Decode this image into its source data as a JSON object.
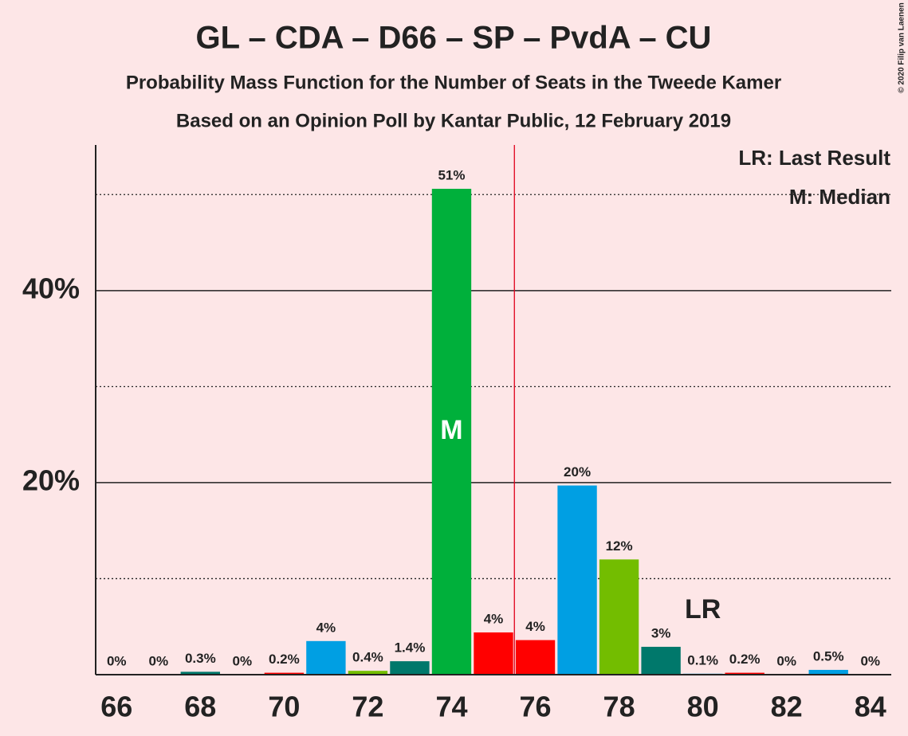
{
  "chart_data": {
    "type": "bar",
    "title": "GL – CDA – D66 – SP – PvdA – CU",
    "subtitle": "Probability Mass Function for the Number of Seats in the Tweede Kamer",
    "subtitle2": "Based on an Opinion Poll by Kantar Public, 12 February 2019",
    "copyright": "© 2020 Filip van Laenen",
    "categories": [
      66,
      67,
      68,
      69,
      70,
      71,
      72,
      73,
      74,
      75,
      76,
      77,
      78,
      79,
      80,
      81,
      82,
      83,
      84
    ],
    "values": [
      0,
      0,
      0.3,
      0,
      0.2,
      3.5,
      0.4,
      1.4,
      50.6,
      4.4,
      3.6,
      19.7,
      12,
      2.9,
      0.1,
      0.2,
      0,
      0.5,
      0
    ],
    "value_labels": [
      "0%",
      "0%",
      "0.3%",
      "0%",
      "0.2%",
      "4%",
      "0.4%",
      "1.4%",
      "51%",
      "4%",
      "4%",
      "20%",
      "12%",
      "3%",
      "0.1%",
      "0.2%",
      "0%",
      "0.5%",
      "0%"
    ],
    "colors": [
      "#00b03b",
      "#ff0000",
      "#00786b",
      "#73bd00",
      "#ff0000",
      "#009fe3",
      "#73bd00",
      "#00786b",
      "#00b03b",
      "#ff0000",
      "#ff0000",
      "#009fe3",
      "#73bd00",
      "#00786b",
      "#009fe3",
      "#ff0000",
      "#00b03b",
      "#009fe3",
      "#73bd00"
    ],
    "xticks": [
      66,
      68,
      70,
      72,
      74,
      76,
      78,
      80,
      82,
      84
    ],
    "xlim": [
      65.5,
      84.5
    ],
    "ylim": [
      0,
      55
    ],
    "yticks": [
      {
        "value": 20,
        "label": "20%"
      },
      {
        "value": 40,
        "label": "40%"
      }
    ],
    "minor_yticks": [
      10,
      30,
      50
    ],
    "majority_line": 75.5,
    "median": {
      "category": 74,
      "label": "M"
    },
    "last_result": {
      "category": 80,
      "label": "LR"
    },
    "legend": [
      "LR: Last Result",
      "M: Median"
    ]
  }
}
